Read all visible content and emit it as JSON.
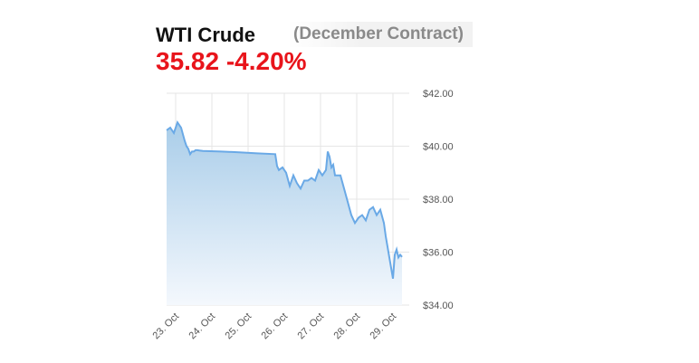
{
  "header": {
    "title": "WTI Crude",
    "subtitle": "(December Contract)",
    "price": "35.82",
    "change": "-4.20%",
    "change_color": "#e8141b"
  },
  "colors": {
    "line": "#6aa9e6",
    "fill_top": "#a9cde9",
    "fill_bottom": "#f4f8fd",
    "grid": "#e6e6e6"
  },
  "chart_data": {
    "type": "area",
    "title": "",
    "xlabel": "",
    "ylabel": "",
    "ylim": [
      34,
      42
    ],
    "xlim": [
      23.0,
      29.7
    ],
    "y_tick_values": [
      34,
      36,
      38,
      40,
      42
    ],
    "y_tick_labels": [
      "$34.00",
      "$36.00",
      "$38.00",
      "$40.00",
      "$42.00"
    ],
    "x_tick_values": [
      23,
      24,
      25,
      26,
      27,
      28,
      29
    ],
    "x_tick_labels": [
      "23. Oct",
      "24. Oct",
      "25. Oct",
      "26. Oct",
      "27. Oct",
      "28. Oct",
      "29. Oct"
    ],
    "grid": true,
    "legend": "none",
    "series": [
      {
        "x": [
          23.0,
          23.1,
          23.2,
          23.3,
          23.4,
          23.5,
          23.55,
          23.6,
          23.65,
          23.7,
          23.75,
          23.8,
          23.85,
          23.9,
          24.0,
          24.5,
          25.0,
          25.5,
          26.0,
          26.05,
          26.1,
          26.2,
          26.3,
          26.4,
          26.5,
          26.6,
          26.7,
          26.8,
          26.9,
          27.0,
          27.1,
          27.2,
          27.3,
          27.4,
          27.45,
          27.5,
          27.55,
          27.6,
          27.65,
          27.7,
          27.8,
          27.9,
          28.0,
          28.1,
          28.2,
          28.3,
          28.4,
          28.5,
          28.6,
          28.7,
          28.8,
          28.9,
          29.0,
          29.05,
          29.1,
          29.15,
          29.2,
          29.25,
          29.3,
          29.35,
          29.4,
          29.45,
          29.5
        ],
        "values": [
          40.6,
          40.7,
          40.5,
          40.9,
          40.7,
          40.2,
          40.0,
          39.9,
          39.7,
          39.8,
          39.8,
          39.85,
          39.85,
          39.84,
          39.82,
          39.8,
          39.77,
          39.73,
          39.7,
          39.25,
          39.1,
          39.2,
          39.0,
          38.5,
          38.9,
          38.6,
          38.4,
          38.7,
          38.7,
          38.8,
          38.7,
          39.1,
          38.9,
          39.1,
          39.8,
          39.6,
          39.2,
          39.3,
          38.9,
          38.9,
          38.9,
          38.4,
          37.9,
          37.4,
          37.1,
          37.3,
          37.4,
          37.2,
          37.6,
          37.7,
          37.4,
          37.6,
          37.1,
          36.6,
          36.2,
          35.8,
          35.4,
          35.0,
          35.9,
          36.1,
          35.8,
          35.9,
          35.82
        ]
      }
    ]
  }
}
